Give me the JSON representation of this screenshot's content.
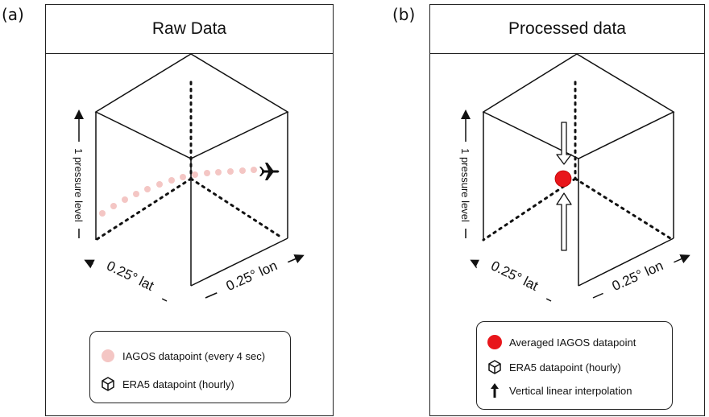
{
  "panel_a": {
    "label": "(a)",
    "title": "Raw Data",
    "axis_vertical": "1 pressure level",
    "axis_lat": "0.25° lat",
    "axis_lon": "0.25° lon",
    "legend": [
      {
        "icon": "pink-dot-icon",
        "text": "IAGOS datapoint (every 4 sec)"
      },
      {
        "icon": "cube-icon",
        "text": "ERA5 datapoint (hourly)"
      }
    ]
  },
  "panel_b": {
    "label": "(b)",
    "title": "Processed data",
    "axis_vertical": "1 pressure level",
    "axis_lat": "0.25° lat",
    "axis_lon": "0.25° lon",
    "legend": [
      {
        "icon": "red-dot-icon",
        "text": "Averaged IAGOS datapoint"
      },
      {
        "icon": "cube-icon",
        "text": "ERA5 datapoint (hourly)"
      },
      {
        "icon": "up-arrow-icon",
        "text": "Vertical linear interpolation"
      }
    ]
  },
  "colors": {
    "iagos_point": "#f4c6c4",
    "averaged_point": "#e8161b",
    "line": "#111111"
  }
}
